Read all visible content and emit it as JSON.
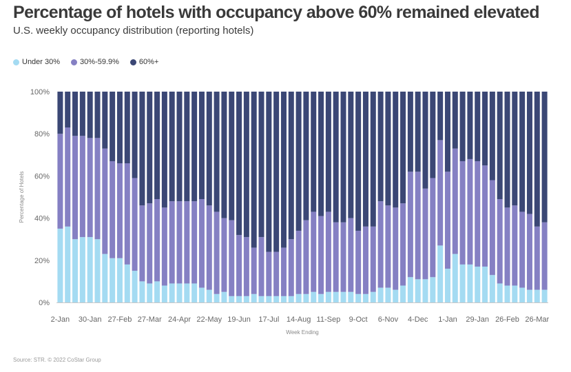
{
  "header": {
    "title": "Percentage of hotels with occupancy above 60% remained elevated",
    "subtitle": "U.S. weekly occupancy distribution (reporting hotels)"
  },
  "legend": [
    {
      "label": "Under 30%",
      "color": "#a4dbf2"
    },
    {
      "label": "30%-59.9%",
      "color": "#8580c3"
    },
    {
      "label": "60%+",
      "color": "#3b4775"
    }
  ],
  "source": "Source: STR. © 2022 CoStar Group",
  "chart_data": {
    "type": "bar",
    "stacked": true,
    "title": "Percentage of hotels with occupancy above 60% remained elevated",
    "xlabel": "Week Ending",
    "ylabel": "Percentage of Hotels",
    "ylim": [
      0,
      100
    ],
    "y_ticks": [
      "0%",
      "20%",
      "40%",
      "60%",
      "80%",
      "100%"
    ],
    "y_tick_values": [
      0,
      20,
      40,
      60,
      80,
      100
    ],
    "x_tick_labels": [
      {
        "index": 0,
        "label": "2-Jan"
      },
      {
        "index": 4,
        "label": "30-Jan"
      },
      {
        "index": 8,
        "label": "27-Feb"
      },
      {
        "index": 12,
        "label": "27-Mar"
      },
      {
        "index": 16,
        "label": "24-Apr"
      },
      {
        "index": 20,
        "label": "22-May"
      },
      {
        "index": 24,
        "label": "19-Jun"
      },
      {
        "index": 28,
        "label": "17-Jul"
      },
      {
        "index": 32,
        "label": "14-Aug"
      },
      {
        "index": 36,
        "label": "11-Sep"
      },
      {
        "index": 40,
        "label": "9-Oct"
      },
      {
        "index": 44,
        "label": "6-Nov"
      },
      {
        "index": 48,
        "label": "4-Dec"
      },
      {
        "index": 52,
        "label": "1-Jan"
      },
      {
        "index": 56,
        "label": "29-Jan"
      },
      {
        "index": 60,
        "label": "26-Feb"
      },
      {
        "index": 64,
        "label": "26-Mar"
      }
    ],
    "series": [
      {
        "name": "Under 30%",
        "color": "#a4dbf2",
        "values": [
          35,
          36,
          30,
          31,
          31,
          30,
          23,
          21,
          21,
          18,
          15,
          10,
          9,
          10,
          8,
          9,
          9,
          9,
          9,
          7,
          6,
          4,
          5,
          3,
          3,
          3,
          4,
          3,
          3,
          3,
          3,
          3,
          4,
          4,
          5,
          4,
          5,
          5,
          5,
          5,
          4,
          4,
          5,
          7,
          7,
          6,
          8,
          12,
          11,
          11,
          12,
          27,
          16,
          23,
          18,
          18,
          17,
          17,
          13,
          9,
          8,
          8,
          7,
          6,
          6,
          6
        ]
      },
      {
        "name": "30%-59.9%",
        "color": "#8580c3",
        "values": [
          45,
          47,
          49,
          48,
          47,
          48,
          50,
          46,
          45,
          48,
          44,
          36,
          38,
          39,
          37,
          39,
          39,
          39,
          39,
          42,
          40,
          39,
          35,
          36,
          29,
          28,
          22,
          28,
          21,
          21,
          23,
          27,
          30,
          35,
          38,
          37,
          38,
          33,
          33,
          35,
          30,
          32,
          31,
          41,
          39,
          39,
          39,
          50,
          51,
          43,
          47,
          50,
          46,
          50,
          49,
          50,
          50,
          48,
          45,
          40,
          37,
          38,
          36,
          36,
          30,
          32
        ]
      }
    ],
    "series_derived": {
      "name": "60%+",
      "color": "#3b4775",
      "note": "remainder to 100%"
    }
  }
}
